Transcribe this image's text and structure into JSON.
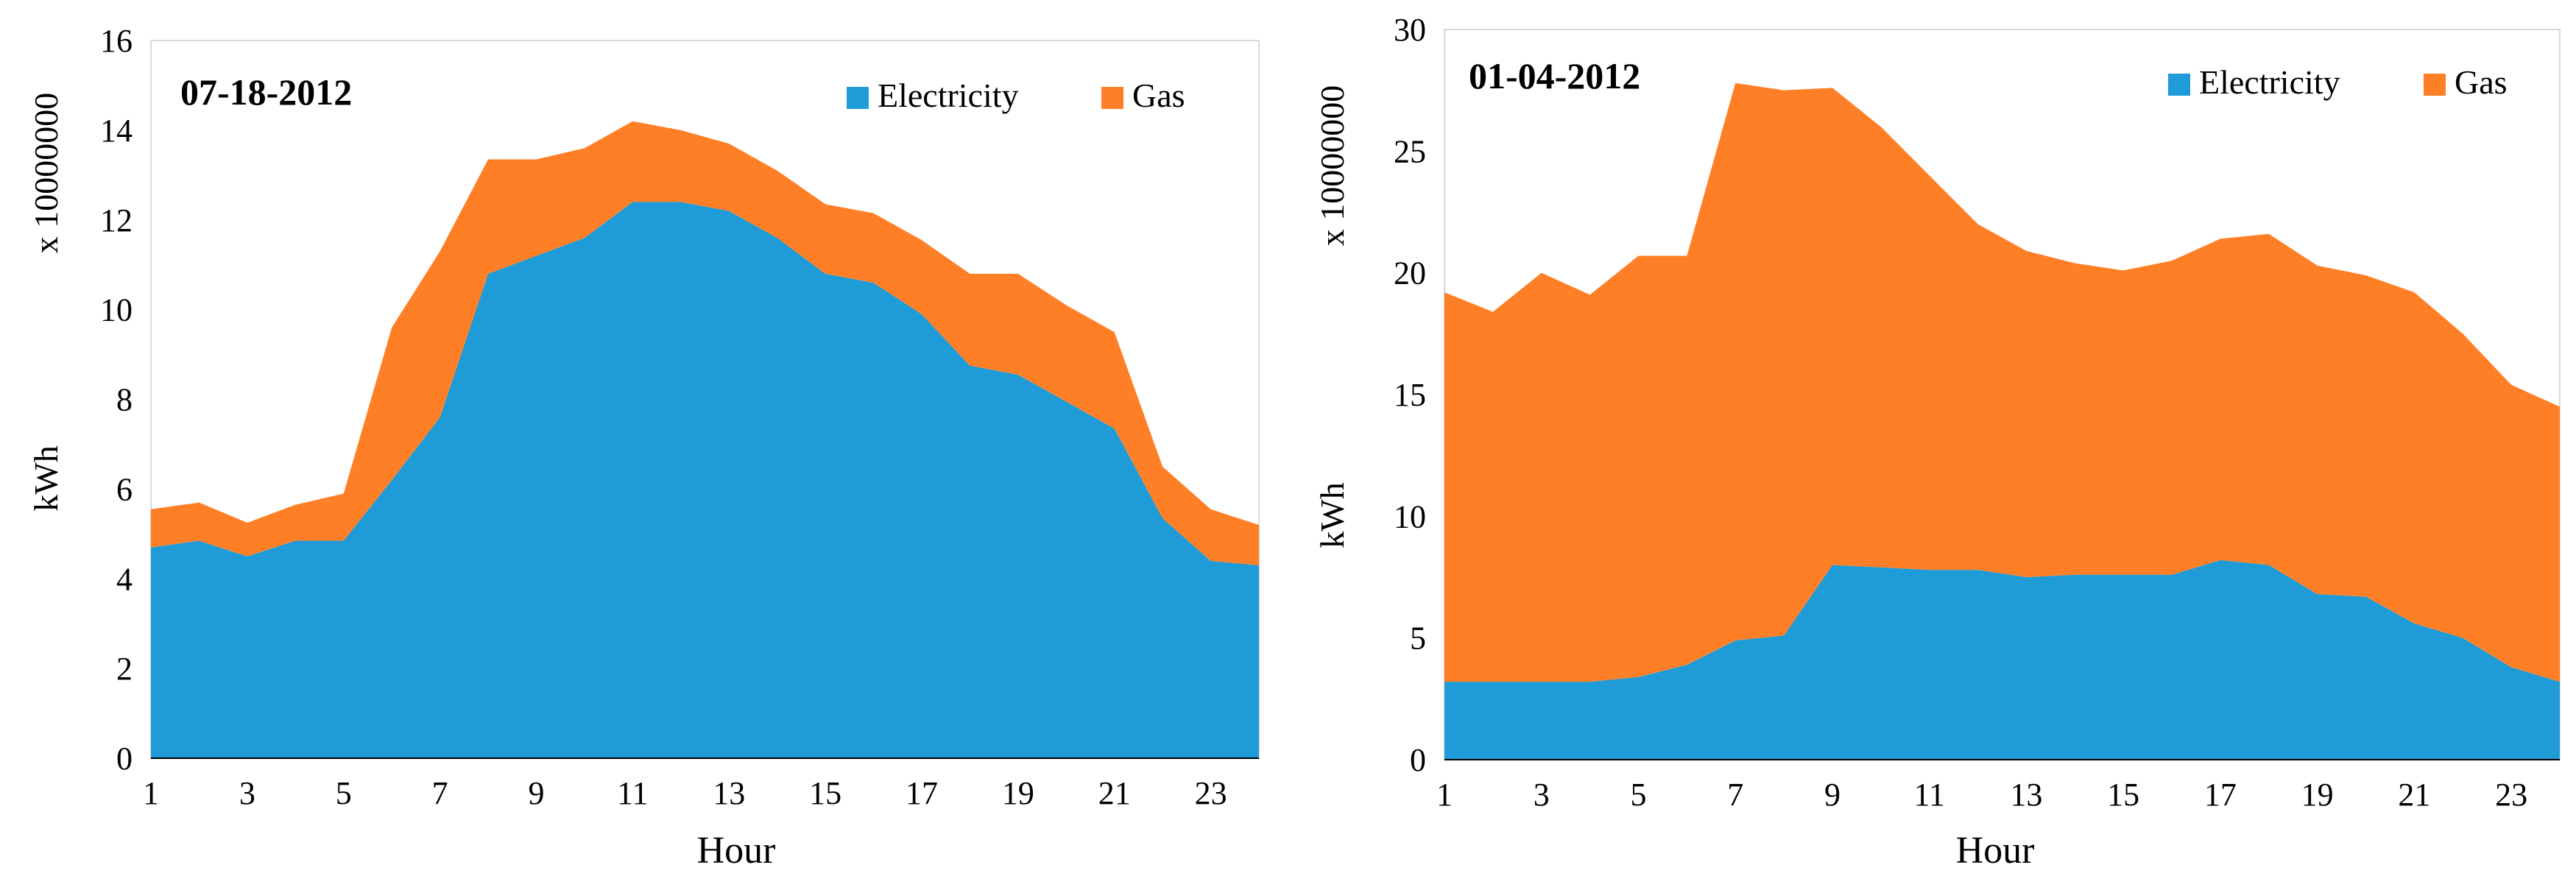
{
  "chart_data": [
    {
      "type": "area",
      "stacked": true,
      "title": "07-18-2012",
      "xlabel": "Hour",
      "ylabel": "kWh",
      "yscale_label": "x 10000000",
      "xlim": [
        1,
        24
      ],
      "ylim": [
        0,
        16
      ],
      "xticks": [
        1,
        3,
        5,
        7,
        9,
        11,
        13,
        15,
        17,
        19,
        21,
        23
      ],
      "yticks": [
        0,
        2,
        4,
        6,
        8,
        10,
        12,
        14,
        16
      ],
      "legend_position": "top-right",
      "x": [
        1,
        2,
        3,
        4,
        5,
        6,
        7,
        8,
        9,
        10,
        11,
        12,
        13,
        14,
        15,
        16,
        17,
        18,
        19,
        20,
        21,
        22,
        23,
        24
      ],
      "series": [
        {
          "name": "Electricity",
          "color": "#1f9bd7",
          "values": [
            4.7,
            4.85,
            4.5,
            4.85,
            4.85,
            6.2,
            7.6,
            10.8,
            11.2,
            11.6,
            12.4,
            12.4,
            12.2,
            11.6,
            10.8,
            10.6,
            9.9,
            8.75,
            8.55,
            7.95,
            7.35,
            5.35,
            4.4,
            4.3
          ]
        },
        {
          "name": "Gas",
          "color": "#ff7f27",
          "values": [
            0.85,
            0.85,
            0.75,
            0.8,
            1.05,
            3.4,
            3.7,
            2.55,
            2.15,
            2.0,
            1.8,
            1.6,
            1.5,
            1.5,
            1.55,
            1.55,
            1.65,
            2.05,
            2.25,
            2.15,
            2.15,
            1.15,
            1.15,
            0.9
          ]
        }
      ]
    },
    {
      "type": "area",
      "stacked": true,
      "title": "01-04-2012",
      "xlabel": "Hour",
      "ylabel": "kWh",
      "yscale_label": "x 10000000",
      "xlim": [
        1,
        24
      ],
      "ylim": [
        0,
        30
      ],
      "xticks": [
        1,
        3,
        5,
        7,
        9,
        11,
        13,
        15,
        17,
        19,
        21,
        23
      ],
      "yticks": [
        0,
        5,
        10,
        15,
        20,
        25,
        30
      ],
      "legend_position": "top-right",
      "x": [
        1,
        2,
        3,
        4,
        5,
        6,
        7,
        8,
        9,
        10,
        11,
        12,
        13,
        14,
        15,
        16,
        17,
        18,
        19,
        20,
        21,
        22,
        23,
        24
      ],
      "series": [
        {
          "name": "Electricity",
          "color": "#1f9bd7",
          "values": [
            3.2,
            3.2,
            3.2,
            3.2,
            3.4,
            3.9,
            4.9,
            5.1,
            8.0,
            7.9,
            7.8,
            7.8,
            7.5,
            7.6,
            7.6,
            7.6,
            8.2,
            8.0,
            6.8,
            6.7,
            5.6,
            5.0,
            3.8,
            3.2
          ]
        },
        {
          "name": "Gas",
          "color": "#ff7f27",
          "values": [
            16.0,
            15.2,
            16.8,
            15.9,
            17.3,
            16.8,
            22.9,
            22.4,
            19.6,
            18.1,
            16.2,
            14.2,
            13.4,
            12.8,
            12.5,
            12.9,
            13.2,
            13.6,
            13.5,
            13.2,
            13.6,
            12.5,
            11.6,
            11.3
          ]
        }
      ]
    }
  ]
}
